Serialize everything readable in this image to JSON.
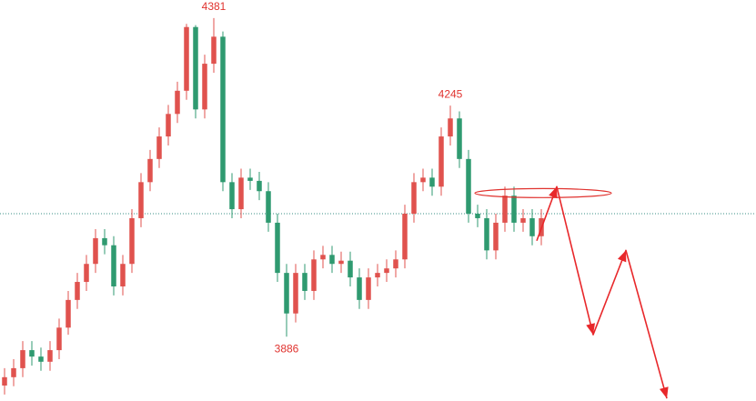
{
  "chart_data": {
    "type": "candlestick",
    "xlim": [
      -0.5,
      82.6
    ],
    "ylim": [
      3786,
      4409
    ],
    "up_color": "#e0524e",
    "down_color": "#2f9a70",
    "open": [
      3810,
      3823,
      3837,
      3865,
      3855,
      3847,
      3865,
      3900,
      3943,
      3971,
      3999,
      4039,
      4028,
      3964,
      3999,
      4070,
      4126,
      4162,
      4197,
      4232,
      4268,
      4367,
      4239,
      4310,
      4352,
      4126,
      4084,
      4133,
      4128,
      4112,
      4063,
      3985,
      3922,
      3985,
      3957,
      4006,
      4013,
      3999,
      4004,
      3978,
      3943,
      3978,
      3985,
      3992,
      4006,
      4077,
      4126,
      4133,
      4119,
      4197,
      4225,
      4162,
      4077,
      4070,
      4020,
      4063,
      4105,
      4063,
      4070,
      4042
    ],
    "high": [
      3837,
      3851,
      3879,
      3879,
      3869,
      3879,
      3914,
      3957,
      3985,
      4013,
      4053,
      4053,
      4042,
      4013,
      4084,
      4140,
      4176,
      4211,
      4246,
      4282,
      4372,
      4370,
      4324,
      4381,
      4360,
      4140,
      4147,
      4147,
      4142,
      4126,
      4077,
      3999,
      3999,
      3999,
      4020,
      4027,
      4027,
      4018,
      4018,
      3992,
      3992,
      3999,
      4006,
      4020,
      4091,
      4140,
      4147,
      4147,
      4211,
      4245,
      4236,
      4176,
      4091,
      4084,
      4077,
      4119,
      4119,
      4084,
      4084,
      4084
    ],
    "low": [
      3796,
      3809,
      3823,
      3841,
      3833,
      3833,
      3851,
      3889,
      3929,
      3957,
      3985,
      4014,
      3950,
      3950,
      3985,
      4056,
      4112,
      4148,
      4183,
      4218,
      4254,
      4225,
      4225,
      4296,
      4112,
      4070,
      4070,
      4114,
      4098,
      4049,
      3971,
      3886,
      3908,
      3943,
      3943,
      3992,
      3985,
      3985,
      3964,
      3929,
      3929,
      3964,
      3971,
      3978,
      3992,
      4063,
      4112,
      4105,
      4105,
      4183,
      4148,
      4063,
      4056,
      4006,
      4006,
      4049,
      4049,
      4049,
      4028,
      4028
    ],
    "close": [
      3823,
      3837,
      3865,
      3855,
      3847,
      3865,
      3900,
      3943,
      3971,
      3999,
      4039,
      4028,
      3964,
      3999,
      4070,
      4126,
      4162,
      4197,
      4232,
      4268,
      4367,
      4239,
      4310,
      4352,
      4126,
      4084,
      4133,
      4128,
      4112,
      4063,
      3985,
      3922,
      3985,
      3957,
      4006,
      4013,
      3999,
      4004,
      3978,
      3943,
      3978,
      3985,
      3992,
      4006,
      4077,
      4126,
      4133,
      4119,
      4197,
      4225,
      4162,
      4077,
      4070,
      4020,
      4063,
      4105,
      4063,
      4070,
      4042,
      4070
    ],
    "annotations": [
      {
        "value": 4381,
        "label": "4381"
      },
      {
        "value": 4245,
        "label": "4245"
      },
      {
        "value": 3886,
        "label": "3886"
      }
    ],
    "reference_line": 4077,
    "reference_color": "#3a8f86",
    "highlight": {
      "x": [
        51.7,
        66.7
      ],
      "y": [
        4102,
        4116
      ],
      "color": "#e0322e"
    },
    "projection": {
      "x": [
        58.5,
        60.7,
        64.7,
        68.3,
        72.8
      ],
      "values": [
        4035,
        4119,
        3889,
        4020,
        3790
      ],
      "color": "#e8282b"
    }
  }
}
